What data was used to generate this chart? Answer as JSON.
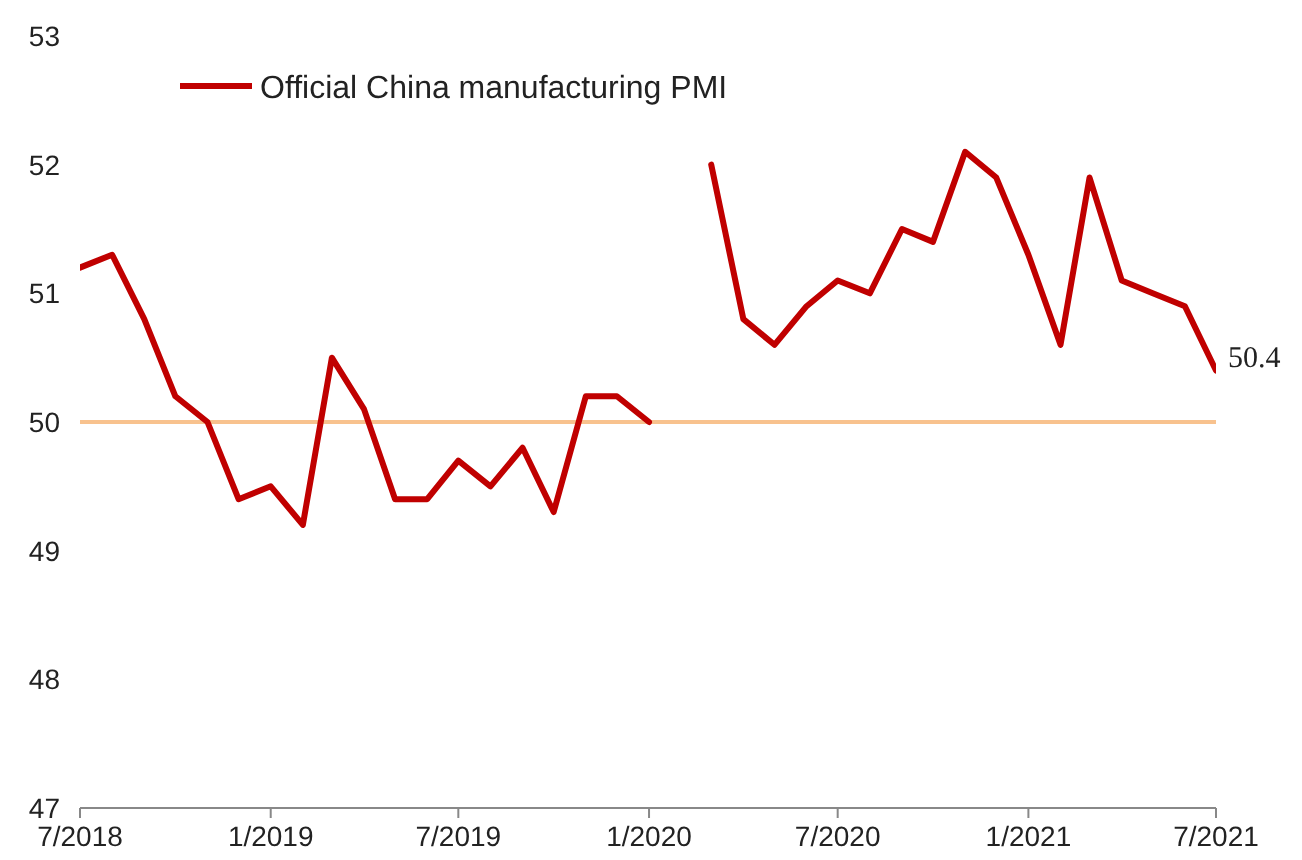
{
  "chart_data": {
    "type": "line",
    "x": [
      "2018-07",
      "2018-08",
      "2018-09",
      "2018-10",
      "2018-11",
      "2018-12",
      "2019-01",
      "2019-02",
      "2019-03",
      "2019-04",
      "2019-05",
      "2019-06",
      "2019-07",
      "2019-08",
      "2019-09",
      "2019-10",
      "2019-11",
      "2019-12",
      "2020-01",
      "2020-02",
      "2020-03",
      "2020-04",
      "2020-05",
      "2020-06",
      "2020-07",
      "2020-08",
      "2020-09",
      "2020-10",
      "2020-11",
      "2020-12",
      "2021-01",
      "2021-02",
      "2021-03",
      "2021-04",
      "2021-05",
      "2021-06",
      "2021-07"
    ],
    "series": [
      {
        "name": "Official China manufacturing PMI",
        "color": "#c00000",
        "values": [
          51.2,
          51.3,
          50.8,
          50.2,
          50.0,
          49.4,
          49.5,
          49.2,
          50.5,
          50.1,
          49.4,
          49.4,
          49.7,
          49.5,
          49.8,
          49.3,
          50.2,
          50.2,
          50.0,
          null,
          52.0,
          50.8,
          50.6,
          50.9,
          51.1,
          51.0,
          51.5,
          51.4,
          52.1,
          51.9,
          51.3,
          50.6,
          51.9,
          51.1,
          51.0,
          50.9,
          50.4
        ]
      }
    ],
    "xlim": [
      "2018-07",
      "2021-07"
    ],
    "xticks": [
      {
        "value": "2018-07",
        "label": "7/2018"
      },
      {
        "value": "2019-01",
        "label": "1/2019"
      },
      {
        "value": "2019-07",
        "label": "7/2019"
      },
      {
        "value": "2020-01",
        "label": "1/2020"
      },
      {
        "value": "2020-07",
        "label": "7/2020"
      },
      {
        "value": "2021-01",
        "label": "1/2021"
      },
      {
        "value": "2021-07",
        "label": "7/2021"
      }
    ],
    "ylim": [
      47,
      53
    ],
    "yticks": [
      47,
      48,
      49,
      50,
      51,
      52,
      53
    ],
    "ref_lines": [
      {
        "axis": "y",
        "value": 50,
        "color": "#f8c28e"
      }
    ],
    "annotations": [
      {
        "text": "50.4",
        "x": "2021-07",
        "y": 50.4
      }
    ],
    "grid": false,
    "legend": "top left",
    "marker": "none",
    "line_style": "solid"
  }
}
